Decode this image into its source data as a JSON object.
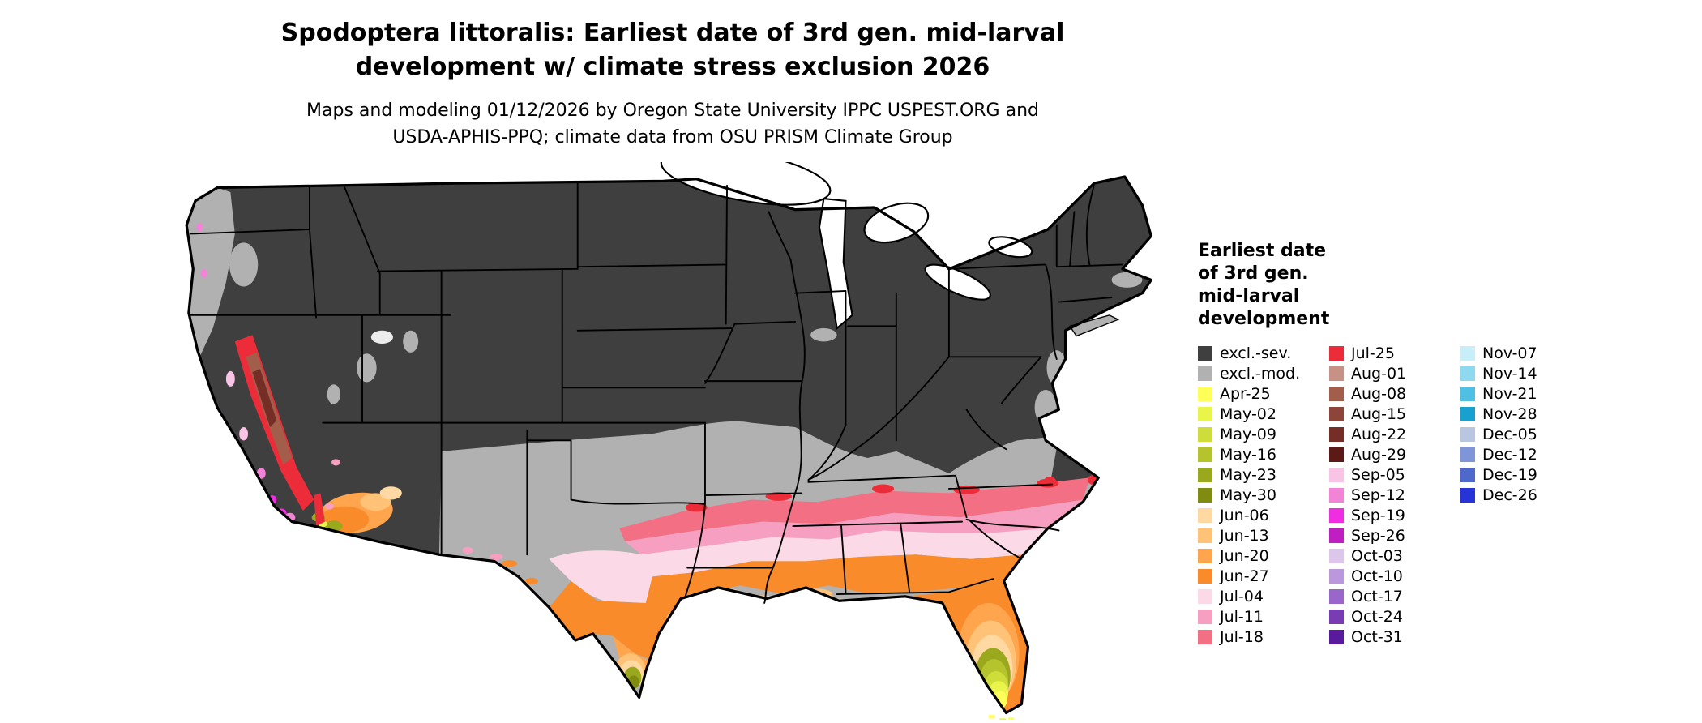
{
  "header": {
    "title_line1": "Spodoptera littoralis: Earliest date of 3rd gen. mid-larval",
    "title_line2": "development w/ climate stress exclusion 2026",
    "subtitle_line1": "Maps and modeling 01/12/2026 by Oregon State University IPPC USPEST.ORG and",
    "subtitle_line2": "USDA-APHIS-PPQ; climate data from OSU PRISM Climate Group"
  },
  "legend": {
    "title_lines": [
      "Earliest date",
      "of 3rd gen.",
      "mid-larval",
      "development"
    ],
    "columns": [
      {
        "items": [
          {
            "label": "excl.-sev.",
            "key": "excl_sev"
          },
          {
            "label": "excl.-mod.",
            "key": "excl_mod"
          },
          {
            "label": "Apr-25",
            "key": "apr25"
          },
          {
            "label": "May-02",
            "key": "may02"
          },
          {
            "label": "May-09",
            "key": "may09"
          },
          {
            "label": "May-16",
            "key": "may16"
          },
          {
            "label": "May-23",
            "key": "may23"
          },
          {
            "label": "May-30",
            "key": "may30"
          },
          {
            "label": "Jun-06",
            "key": "jun06"
          },
          {
            "label": "Jun-13",
            "key": "jun13"
          },
          {
            "label": "Jun-20",
            "key": "jun20"
          },
          {
            "label": "Jun-27",
            "key": "jun27"
          },
          {
            "label": "Jul-04",
            "key": "jul04"
          },
          {
            "label": "Jul-11",
            "key": "jul11"
          },
          {
            "label": "Jul-18",
            "key": "jul18"
          }
        ]
      },
      {
        "items": [
          {
            "label": "Jul-25",
            "key": "jul25"
          },
          {
            "label": "Aug-01",
            "key": "aug01"
          },
          {
            "label": "Aug-08",
            "key": "aug08"
          },
          {
            "label": "Aug-15",
            "key": "aug15"
          },
          {
            "label": "Aug-22",
            "key": "aug22"
          },
          {
            "label": "Aug-29",
            "key": "aug29"
          },
          {
            "label": "Sep-05",
            "key": "sep05"
          },
          {
            "label": "Sep-12",
            "key": "sep12"
          },
          {
            "label": "Sep-19",
            "key": "sep19"
          },
          {
            "label": "Sep-26",
            "key": "sep26"
          },
          {
            "label": "Oct-03",
            "key": "oct03"
          },
          {
            "label": "Oct-10",
            "key": "oct10"
          },
          {
            "label": "Oct-17",
            "key": "oct17"
          },
          {
            "label": "Oct-24",
            "key": "oct24"
          },
          {
            "label": "Oct-31",
            "key": "oct31"
          }
        ]
      },
      {
        "items": [
          {
            "label": "Nov-07",
            "key": "nov07"
          },
          {
            "label": "Nov-14",
            "key": "nov14"
          },
          {
            "label": "Nov-21",
            "key": "nov21"
          },
          {
            "label": "Nov-28",
            "key": "nov28"
          },
          {
            "label": "Dec-05",
            "key": "dec05"
          },
          {
            "label": "Dec-12",
            "key": "dec12"
          },
          {
            "label": "Dec-19",
            "key": "dec19"
          },
          {
            "label": "Dec-26",
            "key": "dec26"
          }
        ]
      }
    ]
  },
  "palette": {
    "excl_sev": "#3f3f3f",
    "excl_mod": "#b1b1b1",
    "apr25": "#ffff59",
    "may02": "#e9f54a",
    "may09": "#cfdd3a",
    "may16": "#b5c42c",
    "may23": "#9aa81e",
    "may30": "#7f8c10",
    "jun06": "#ffd9a1",
    "jun13": "#ffc276",
    "jun20": "#ffa54d",
    "jun27": "#f98b2a",
    "jul04": "#fbd9e6",
    "jul11": "#f79fc0",
    "jul18": "#f37084",
    "jul25": "#ec2d39",
    "aug01": "#c79186",
    "aug08": "#a35d4b",
    "aug15": "#8c4538",
    "aug22": "#752e26",
    "aug29": "#5c1a16",
    "sep05": "#f8c3e4",
    "sep12": "#f383d6",
    "sep19": "#ee2ee0",
    "sep26": "#bf1fc1",
    "oct03": "#dcc6ec",
    "oct10": "#bb97dc",
    "oct17": "#9a66c9",
    "oct24": "#7a3cb3",
    "oct31": "#5a1a9e",
    "nov07": "#c8eef9",
    "nov14": "#8fd9f0",
    "nov21": "#4fc0e4",
    "nov28": "#18a0cf",
    "dec05": "#b9c6e2",
    "dec12": "#7e96d8",
    "dec19": "#4e68cc",
    "dec26": "#2633d6"
  }
}
